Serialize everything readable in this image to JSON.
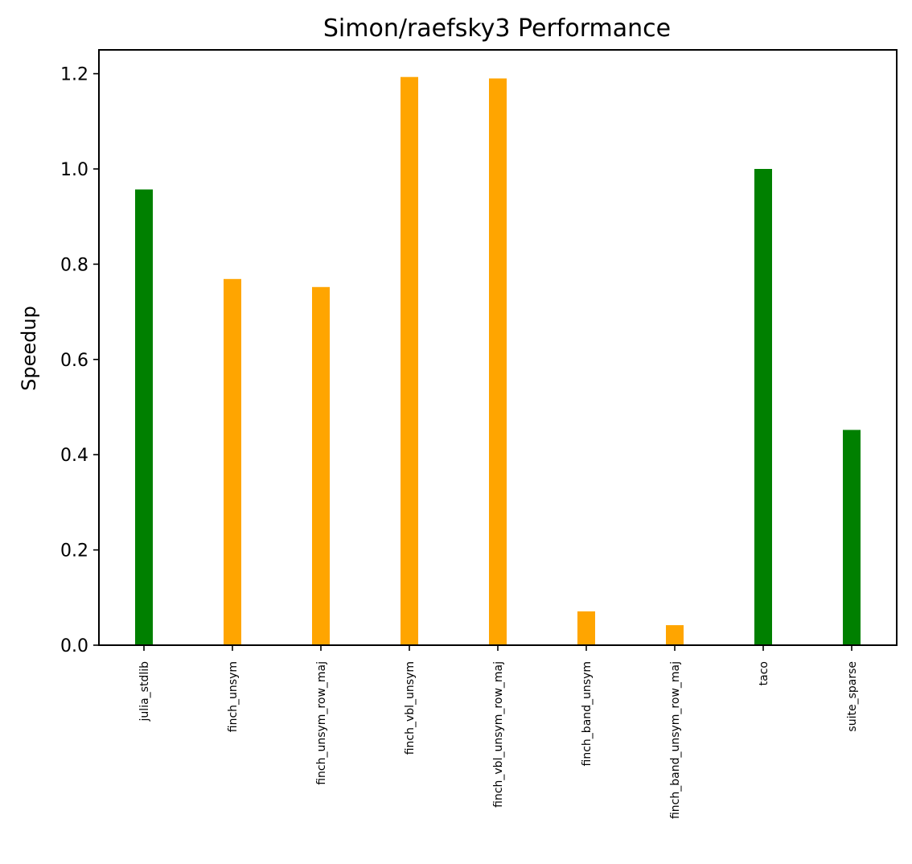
{
  "chart_data": {
    "type": "bar",
    "title": "Simon/raefsky3 Performance",
    "xlabel": "",
    "ylabel": "Speedup",
    "ylim": [
      0,
      1.25
    ],
    "yticks": [
      "0.0",
      "0.2",
      "0.4",
      "0.6",
      "0.8",
      "1.0",
      "1.2"
    ],
    "categories": [
      "julia_stdlib",
      "finch_unsym",
      "finch_unsym_row_maj",
      "finch_vbl_unsym",
      "finch_vbl_unsym_row_maj",
      "finch_band_unsym",
      "finch_band_unsym_row_maj",
      "taco",
      "suite_sparse"
    ],
    "values": [
      0.957,
      0.769,
      0.752,
      1.193,
      1.19,
      0.071,
      0.042,
      1.0,
      0.452
    ],
    "colors": [
      "#008000",
      "#FFA500",
      "#FFA500",
      "#FFA500",
      "#FFA500",
      "#FFA500",
      "#FFA500",
      "#008000",
      "#008000"
    ],
    "grid": false,
    "legend": "none"
  }
}
